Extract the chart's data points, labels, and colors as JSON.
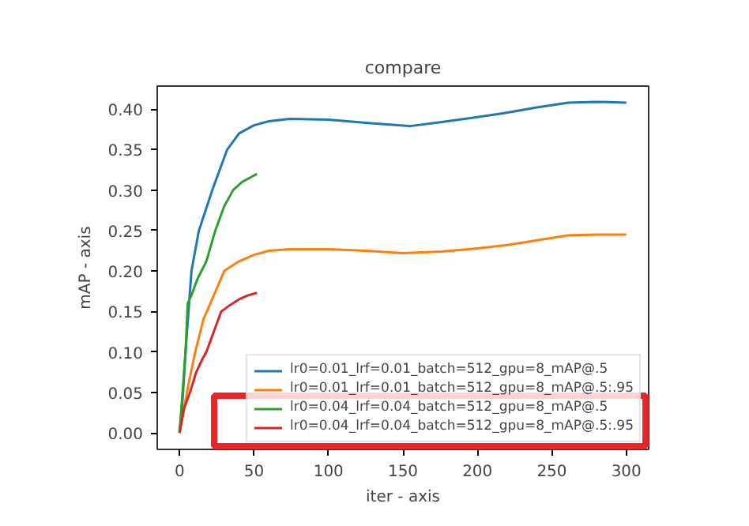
{
  "chart_data": {
    "type": "line",
    "title": "compare",
    "xlabel": "iter - axis",
    "ylabel": "mAP - axis",
    "xlim": [
      -15,
      315
    ],
    "ylim": [
      -0.0204,
      0.4284
    ],
    "xticks": [
      0,
      50,
      100,
      150,
      200,
      250,
      300
    ],
    "yticks": [
      {
        "value": 0,
        "label": "0.00"
      },
      {
        "value": 0.05,
        "label": "0.05"
      },
      {
        "value": 0.1,
        "label": "0.10"
      },
      {
        "value": 0.15,
        "label": "0.15"
      },
      {
        "value": 0.2,
        "label": "0.20"
      },
      {
        "value": 0.25,
        "label": "0.25"
      },
      {
        "value": 0.3,
        "label": "0.30"
      },
      {
        "value": 0.35,
        "label": "0.35"
      },
      {
        "value": 0.4,
        "label": "0.40"
      }
    ],
    "grid": false,
    "legend": "bottom right",
    "marker": "none",
    "line_style": "solid",
    "series": [
      {
        "name": "lr0=0.01_lrf=0.01_batch=512_gpu=8_mAP@.5",
        "color": "#1f77b4",
        "x": [
          0,
          2,
          4,
          8,
          13,
          22,
          32,
          40,
          50,
          60,
          74,
          100,
          125,
          155,
          176,
          200,
          218,
          240,
          261,
          280,
          300
        ],
        "values": [
          0,
          0.04,
          0.1,
          0.2,
          0.25,
          0.3,
          0.35,
          0.37,
          0.38,
          0.385,
          0.388,
          0.387,
          0.383,
          0.379,
          0.384,
          0.39,
          0.395,
          0.402,
          0.408,
          0.409,
          0.408
        ]
      },
      {
        "name": "lr0=0.01_lrf=0.01_batch=512_gpu=8_mAP@.5:.95",
        "color": "#ff7f0e",
        "x": [
          0,
          3,
          6,
          10.5,
          16,
          23,
          30,
          40,
          50,
          60,
          74,
          100,
          125,
          150,
          176,
          200,
          220,
          240,
          261,
          280,
          300
        ],
        "values": [
          0,
          0.03,
          0.06,
          0.1,
          0.14,
          0.17,
          0.2,
          0.212,
          0.22,
          0.225,
          0.227,
          0.227,
          0.225,
          0.222,
          0.224,
          0.228,
          0.232,
          0.238,
          0.244,
          0.245,
          0.245
        ]
      },
      {
        "name": "lr0=0.04_lrf=0.04_batch=512_gpu=8_mAP@.5",
        "color": "#2ca02c",
        "x": [
          0,
          2,
          4,
          5.5,
          8,
          12,
          18,
          24,
          30,
          36,
          42,
          48,
          52
        ],
        "values": [
          0,
          0.05,
          0.1,
          0.16,
          0.17,
          0.19,
          0.212,
          0.25,
          0.28,
          0.3,
          0.31,
          0.316,
          0.32
        ]
      },
      {
        "name": "lr0=0.04_lrf=0.04_batch=512_gpu=8_mAP@.5:.95",
        "color": "#d62728",
        "x": [
          0,
          3,
          7,
          11,
          15,
          18,
          24,
          28,
          34,
          40,
          46,
          52
        ],
        "values": [
          0,
          0.03,
          0.05,
          0.074,
          0.09,
          0.1,
          0.13,
          0.15,
          0.158,
          0.165,
          0.17,
          0.173
        ]
      }
    ]
  }
}
